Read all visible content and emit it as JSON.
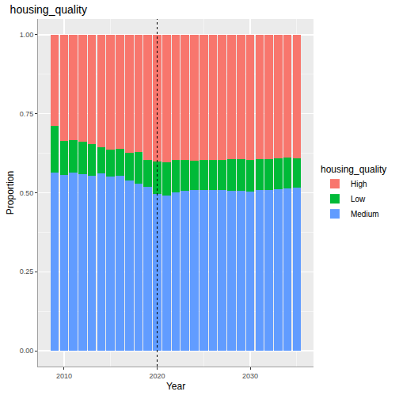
{
  "chart_data": {
    "type": "bar",
    "stacked": true,
    "title": "housing_quality",
    "x_label": "Year",
    "y_label": "Proportion",
    "legend_title": "housing_quality",
    "legend": "right",
    "grid": true,
    "x": [
      2009,
      2010,
      2011,
      2012,
      2013,
      2014,
      2015,
      2016,
      2017,
      2018,
      2019,
      2020,
      2021,
      2022,
      2023,
      2024,
      2025,
      2026,
      2027,
      2028,
      2029,
      2030,
      2031,
      2032,
      2033,
      2034,
      2035
    ],
    "series": [
      {
        "name": "Medium",
        "color": "#619CFF",
        "values": [
          0.565,
          0.557,
          0.563,
          0.558,
          0.554,
          0.562,
          0.552,
          0.553,
          0.54,
          0.53,
          0.52,
          0.497,
          0.49,
          0.502,
          0.507,
          0.508,
          0.508,
          0.508,
          0.508,
          0.507,
          0.506,
          0.505,
          0.508,
          0.51,
          0.512,
          0.514,
          0.516
        ]
      },
      {
        "name": "Low",
        "color": "#00BA38",
        "values": [
          0.147,
          0.108,
          0.104,
          0.104,
          0.1,
          0.082,
          0.084,
          0.085,
          0.087,
          0.098,
          0.083,
          0.103,
          0.107,
          0.101,
          0.097,
          0.094,
          0.096,
          0.097,
          0.095,
          0.1,
          0.101,
          0.1,
          0.098,
          0.097,
          0.096,
          0.098,
          0.094
        ]
      },
      {
        "name": "High",
        "color": "#F8766D",
        "values": [
          0.288,
          0.335,
          0.333,
          0.338,
          0.346,
          0.356,
          0.364,
          0.362,
          0.373,
          0.372,
          0.397,
          0.4,
          0.403,
          0.397,
          0.396,
          0.398,
          0.396,
          0.395,
          0.397,
          0.393,
          0.393,
          0.395,
          0.394,
          0.393,
          0.392,
          0.388,
          0.39
        ]
      }
    ],
    "xlim": [
      2007.2,
      2036.8
    ],
    "xticks": [
      2010,
      2020,
      2030
    ],
    "ylim": [
      -0.05,
      1.05
    ],
    "yticks": [
      {
        "value": 0,
        "label": "0.00"
      },
      {
        "value": 0.25,
        "label": "0.25"
      },
      {
        "value": 0.5,
        "label": "0.50"
      },
      {
        "value": 0.75,
        "label": "0.75"
      },
      {
        "value": 1,
        "label": "1.00"
      }
    ],
    "reference_line": {
      "x": 2020,
      "line_style": "dotted"
    }
  }
}
